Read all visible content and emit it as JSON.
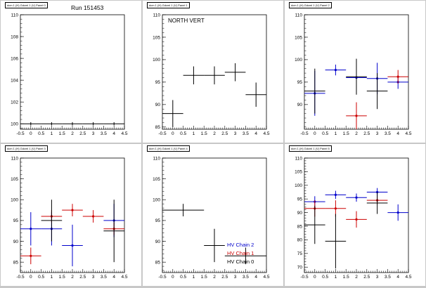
{
  "chart_data": [
    {
      "type": "scatter",
      "panel_title": "dcm 1 (H) Gdcml 1 (V) Panel 0",
      "annotation": "Run 151453",
      "xlim": [
        -0.5,
        4.5
      ],
      "ylim": [
        99.5,
        110
      ],
      "xticks": [
        "-0.5",
        "0",
        "0.5",
        "1",
        "1.5",
        "2",
        "2.5",
        "3",
        "3.5",
        "4",
        "4.5"
      ],
      "yticks": [
        "100",
        "102",
        "104",
        "106",
        "108",
        "110"
      ],
      "series": [
        {
          "color": "#000000",
          "points": [
            {
              "x": 0,
              "y": 100,
              "xerr": 0.5,
              "yerr": 0.15
            },
            {
              "x": 1,
              "y": 100,
              "xerr": 0.5,
              "yerr": 0.15
            },
            {
              "x": 2,
              "y": 100,
              "xerr": 0.5,
              "yerr": 0.15
            },
            {
              "x": 3,
              "y": 100,
              "xerr": 0.5,
              "yerr": 0.15
            },
            {
              "x": 4,
              "y": 100,
              "xerr": 0.5,
              "yerr": 0.15
            }
          ]
        }
      ],
      "legend": []
    },
    {
      "type": "scatter",
      "panel_title": "dcm 1 (H) Gdcml 1 (V) Panel 1",
      "annotation": "NORTH VERT",
      "xlim": [
        -0.5,
        4.5
      ],
      "ylim": [
        84.5,
        110
      ],
      "xticks": [
        "-0.5",
        "0",
        "0.5",
        "1",
        "1.5",
        "2",
        "2.5",
        "3",
        "3.5",
        "4",
        "4.5"
      ],
      "yticks": [
        "85",
        "90",
        "95",
        "100",
        "105",
        "110"
      ],
      "series": [
        {
          "color": "#000000",
          "points": [
            {
              "x": 0,
              "y": 88,
              "xerr": 0.5,
              "yerr": 3
            },
            {
              "x": 1,
              "y": 96.5,
              "xerr": 0.5,
              "yerr": 2
            },
            {
              "x": 2,
              "y": 96.5,
              "xerr": 0.5,
              "yerr": 2
            },
            {
              "x": 3,
              "y": 97.2,
              "xerr": 0.5,
              "yerr": 2
            },
            {
              "x": 4,
              "y": 92.2,
              "xerr": 0.5,
              "yerr": 2.7
            }
          ]
        }
      ],
      "legend": []
    },
    {
      "type": "scatter",
      "panel_title": "dcm 1 (H) Gdcml 1 (V) Panel 2",
      "annotation": "",
      "xlim": [
        -0.5,
        4.5
      ],
      "ylim": [
        84.5,
        110
      ],
      "xticks": [
        "-0.5",
        "0",
        "0.5",
        "1",
        "1.5",
        "2",
        "2.5",
        "3",
        "3.5",
        "4",
        "4.5"
      ],
      "yticks": [
        "90",
        "95",
        "100",
        "105",
        "110"
      ],
      "series": [
        {
          "color": "#0000cc",
          "points": [
            {
              "x": 0,
              "y": 92.5,
              "xerr": 0.5,
              "yerr": 5
            },
            {
              "x": 1,
              "y": 97.7,
              "xerr": 0.5,
              "yerr": 1.2
            },
            {
              "x": 2,
              "y": 96,
              "xerr": 0.5,
              "yerr": 2
            },
            {
              "x": 3,
              "y": 95.8,
              "xerr": 0.5,
              "yerr": 3.5
            },
            {
              "x": 4,
              "y": 95,
              "xerr": 0.5,
              "yerr": 1.5
            }
          ]
        },
        {
          "color": "#cc0000",
          "points": [
            {
              "x": 2,
              "y": 87.5,
              "xerr": 0.5,
              "yerr": 3
            },
            {
              "x": 4,
              "y": 96.2,
              "xerr": 0.5,
              "yerr": 1.5
            }
          ]
        },
        {
          "color": "#000000",
          "points": [
            {
              "x": 0,
              "y": 93,
              "xerr": 0.5,
              "yerr": 5
            },
            {
              "x": 2,
              "y": 96.2,
              "xerr": 0.5,
              "yerr": 4
            },
            {
              "x": 3,
              "y": 93,
              "xerr": 0.5,
              "yerr": 4
            }
          ]
        }
      ],
      "legend": []
    },
    {
      "type": "scatter",
      "panel_title": "dcm 1 (H) Gdcml 1 (V) Panel 3",
      "annotation": "",
      "xlim": [
        -0.5,
        4.5
      ],
      "ylim": [
        82.5,
        110
      ],
      "xticks": [
        "-0.5",
        "0",
        "0.5",
        "1",
        "1.5",
        "2",
        "2.5",
        "3",
        "3.5",
        "4",
        "4.5"
      ],
      "yticks": [
        "85",
        "90",
        "95",
        "100",
        "105",
        "110"
      ],
      "series": [
        {
          "color": "#0000cc",
          "points": [
            {
              "x": 0,
              "y": 93,
              "xerr": 0.5,
              "yerr": 4
            },
            {
              "x": 1,
              "y": 93,
              "xerr": 0.5,
              "yerr": 4
            },
            {
              "x": 2,
              "y": 89,
              "xerr": 0.5,
              "yerr": 5
            },
            {
              "x": 4,
              "y": 95,
              "xerr": 0.5,
              "yerr": 4
            }
          ]
        },
        {
          "color": "#cc0000",
          "points": [
            {
              "x": 0,
              "y": 86.5,
              "xerr": 0.5,
              "yerr": 2
            },
            {
              "x": 1,
              "y": 96,
              "xerr": 0.5,
              "yerr": 1.5
            },
            {
              "x": 2,
              "y": 97.5,
              "xerr": 0.5,
              "yerr": 1.5
            },
            {
              "x": 3,
              "y": 96,
              "xerr": 0.5,
              "yerr": 1.5
            },
            {
              "x": 4,
              "y": 93,
              "xerr": 0.5,
              "yerr": 1.5
            }
          ]
        },
        {
          "color": "#000000",
          "points": [
            {
              "x": 1,
              "y": 95,
              "xerr": 0.5,
              "yerr": 5
            },
            {
              "x": 4,
              "y": 92.5,
              "xerr": 0.5,
              "yerr": 7.5
            }
          ]
        }
      ],
      "legend": []
    },
    {
      "type": "scatter",
      "panel_title": "dcm 1 (H) Gdcml 1 (V) Panel 4",
      "annotation": "",
      "xlim": [
        -0.5,
        4.5
      ],
      "ylim": [
        82.5,
        110
      ],
      "xticks": [
        "-0.5",
        "0",
        "0.5",
        "1",
        "1.5",
        "2",
        "2.5",
        "3",
        "3.5",
        "4",
        "4.5"
      ],
      "yticks": [
        "85",
        "90",
        "95",
        "100",
        "105",
        "110"
      ],
      "series": [
        {
          "color": "#000000",
          "points": [
            {
              "x": 0.5,
              "y": 97.5,
              "xerr": 1,
              "yerr": 1.5
            },
            {
              "x": 2,
              "y": 89,
              "xerr": 0.5,
              "yerr": 4
            },
            {
              "x": 3.5,
              "y": 86.5,
              "xerr": 1,
              "yerr": 2
            }
          ]
        }
      ],
      "legend": [
        {
          "label": "HV Chain 2",
          "color": "#0000cc"
        },
        {
          "label": "HV Chain 1",
          "color": "#cc0000"
        },
        {
          "label": "HV Chain 0",
          "color": "#000000"
        }
      ]
    },
    {
      "type": "scatter",
      "panel_title": "dcm 1 (H) Gdcml 1 (V) Panel 5",
      "annotation": "",
      "xlim": [
        -0.5,
        4.5
      ],
      "ylim": [
        68,
        110
      ],
      "xticks": [
        "-0.5",
        "0",
        "0.5",
        "1",
        "1.5",
        "2",
        "2.5",
        "3",
        "3.5",
        "4",
        "4.5"
      ],
      "yticks": [
        "70",
        "75",
        "80",
        "85",
        "90",
        "95",
        "100",
        "105",
        "110"
      ],
      "series": [
        {
          "color": "#0000cc",
          "points": [
            {
              "x": 0,
              "y": 94,
              "xerr": 0.5,
              "yerr": 2
            },
            {
              "x": 1,
              "y": 96.5,
              "xerr": 0.5,
              "yerr": 1.5
            },
            {
              "x": 2,
              "y": 95.5,
              "xerr": 0.5,
              "yerr": 1.5
            },
            {
              "x": 3,
              "y": 97.5,
              "xerr": 0.5,
              "yerr": 1.5
            },
            {
              "x": 4,
              "y": 90,
              "xerr": 0.5,
              "yerr": 3
            }
          ]
        },
        {
          "color": "#cc0000",
          "points": [
            {
              "x": 0,
              "y": 91.5,
              "xerr": 0.5,
              "yerr": 3
            },
            {
              "x": 1,
              "y": 91.5,
              "xerr": 0.5,
              "yerr": 3
            },
            {
              "x": 2,
              "y": 87.5,
              "xerr": 0.5,
              "yerr": 3
            },
            {
              "x": 3,
              "y": 94.5,
              "xerr": 0.5,
              "yerr": 1.5
            }
          ]
        },
        {
          "color": "#000000",
          "points": [
            {
              "x": 0,
              "y": 85.5,
              "xerr": 0.5,
              "yerr": 7
            },
            {
              "x": 1,
              "y": 79.5,
              "xerr": 0.5,
              "yerr": 10
            },
            {
              "x": 3,
              "y": 93.5,
              "xerr": 0.5,
              "yerr": 4
            }
          ]
        }
      ],
      "legend": []
    }
  ]
}
